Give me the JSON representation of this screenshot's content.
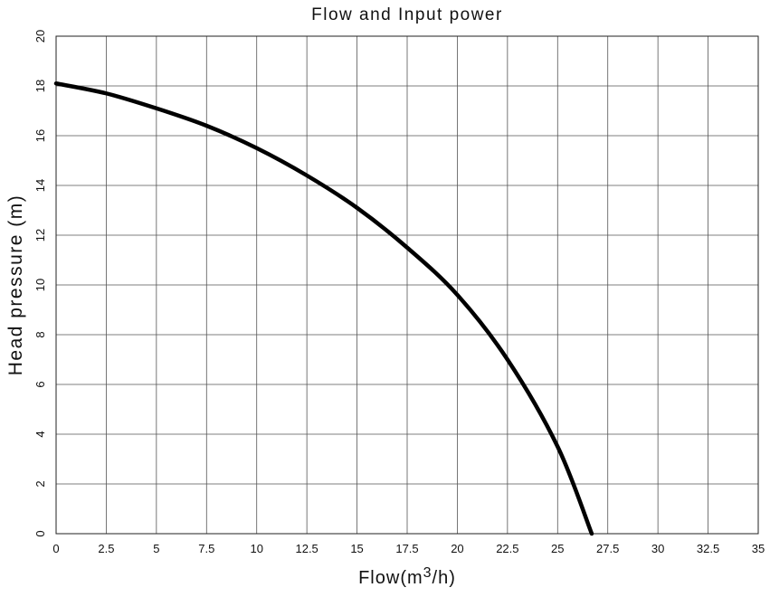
{
  "chart_data": {
    "type": "line",
    "title": "Flow and Input power",
    "xlabel_prefix": "Flow(m",
    "xlabel_sup": "3",
    "xlabel_suffix": "/h)",
    "ylabel": "Head pressure (m)",
    "xlim": [
      0,
      35
    ],
    "ylim": [
      0,
      20
    ],
    "x_ticks": [
      "0",
      "2.5",
      "5",
      "7.5",
      "10",
      "12.5",
      "15",
      "17.5",
      "20",
      "22.5",
      "25",
      "27.5",
      "30",
      "32.5",
      "35"
    ],
    "y_ticks": [
      "0",
      "2",
      "4",
      "6",
      "8",
      "10",
      "12",
      "14",
      "16",
      "18",
      "20"
    ],
    "grid": true,
    "series": [
      {
        "x": [
          0,
          2.5,
          5,
          7.5,
          10,
          12.5,
          15,
          17.5,
          20,
          22.5,
          25,
          26.7
        ],
        "y": [
          18.1,
          17.7,
          17.1,
          16.4,
          15.5,
          14.4,
          13.1,
          11.5,
          9.6,
          7.0,
          3.5,
          0
        ]
      }
    ]
  }
}
